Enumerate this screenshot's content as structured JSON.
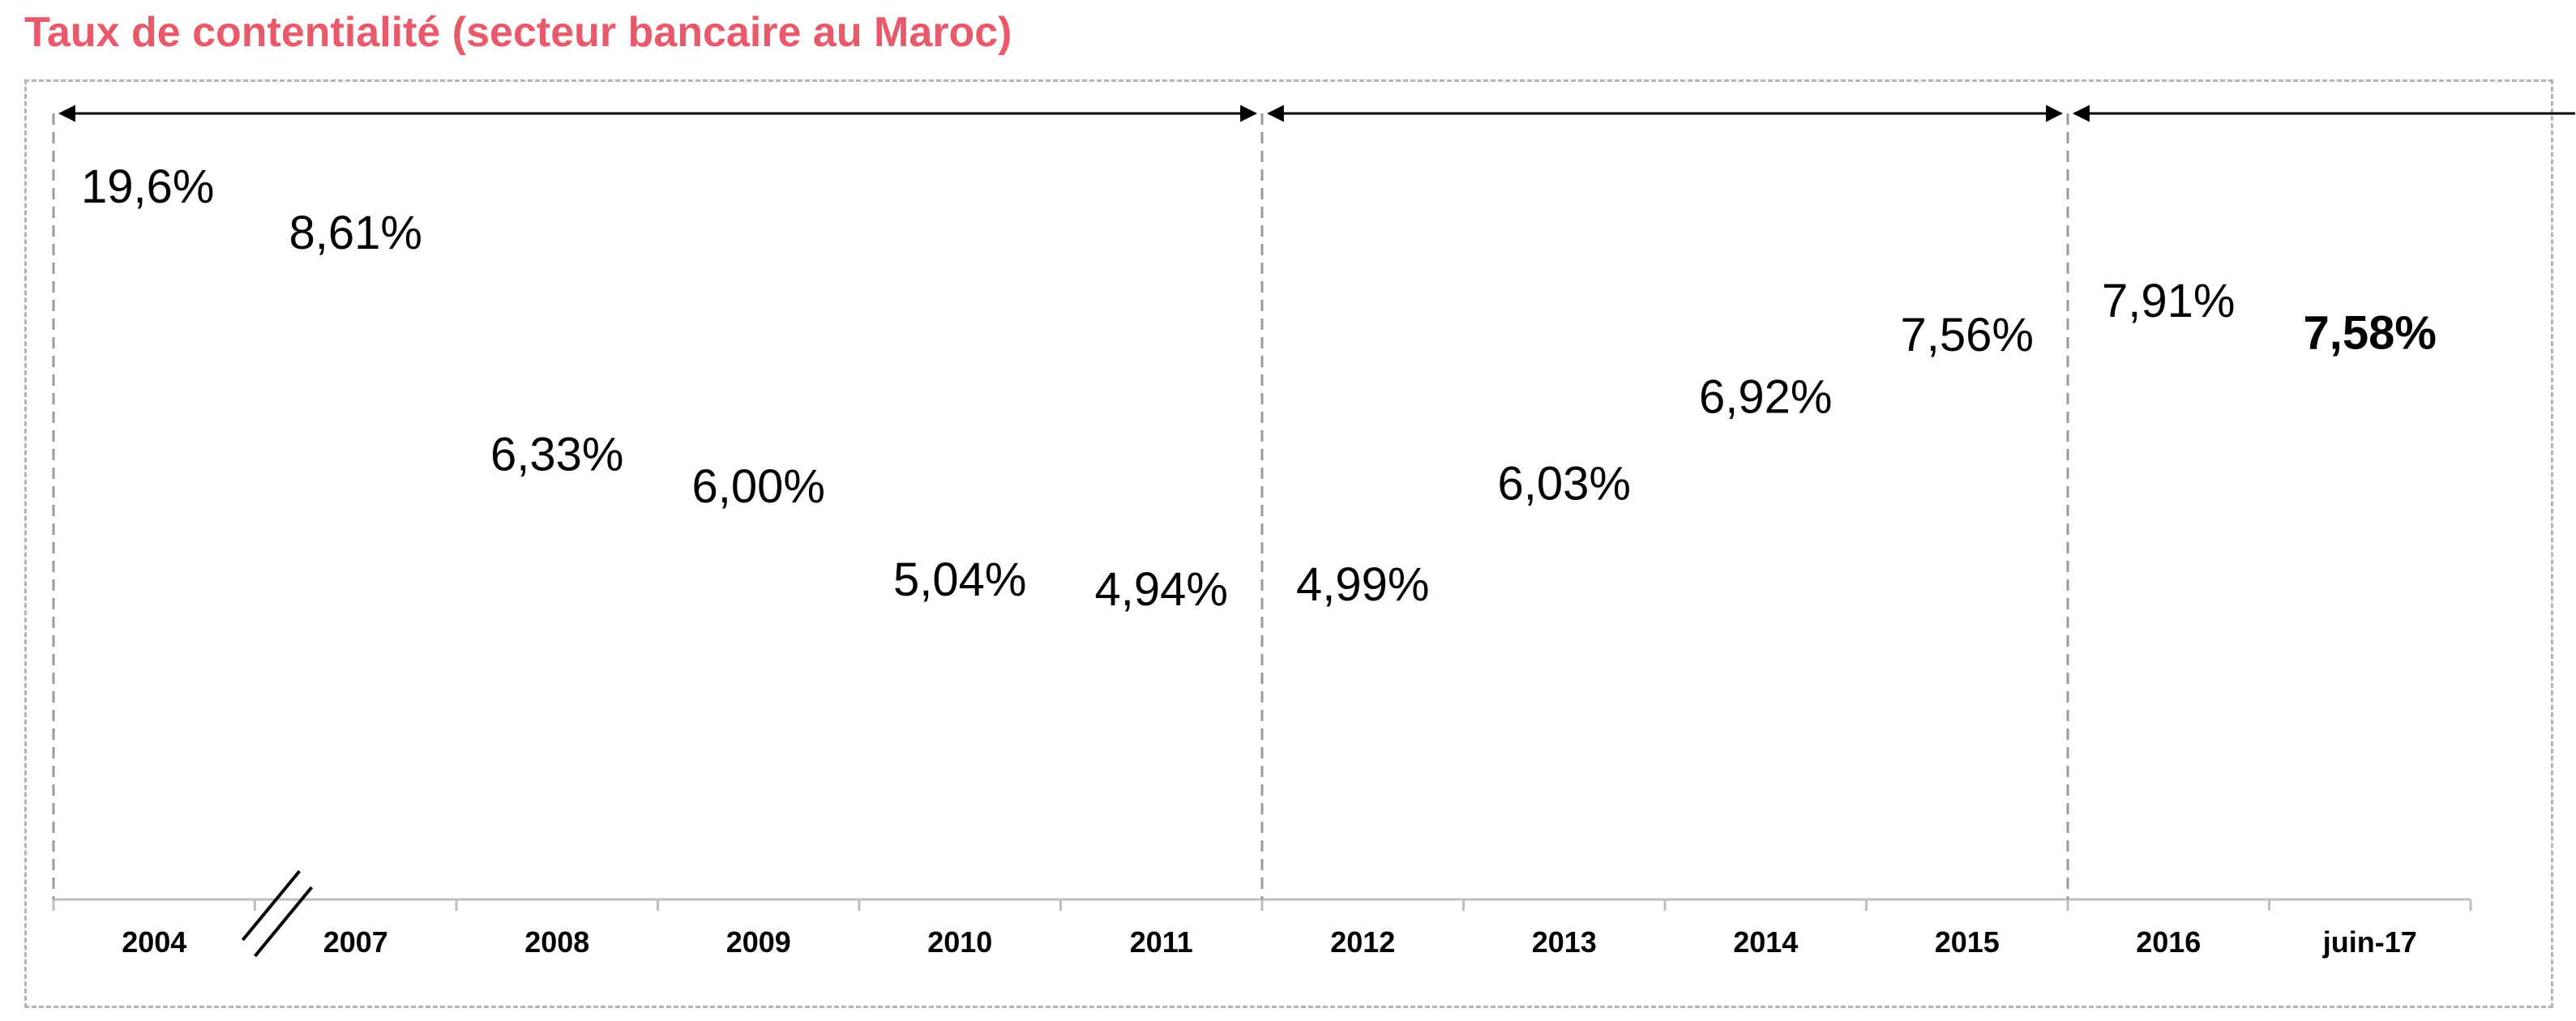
{
  "title": "Taux de contentialité (secteur bancaire au Maroc)",
  "colors": {
    "title": "#e85a6a",
    "axis": "#bfbfbf",
    "frame": "#b5b5b5",
    "text": "#000000"
  },
  "chart_data": {
    "type": "table",
    "title": "Taux de contentialité (secteur bancaire au Maroc)",
    "xlabel": "",
    "ylabel": "",
    "categories": [
      "2004",
      "2007",
      "2008",
      "2009",
      "2010",
      "2011",
      "2012",
      "2013",
      "2014",
      "2015",
      "2016",
      "juin-17"
    ],
    "values": [
      19.6,
      8.61,
      6.33,
      6.0,
      5.04,
      4.94,
      4.99,
      6.03,
      6.92,
      7.56,
      7.91,
      7.58
    ],
    "labels": [
      "19,6%",
      "8,61%",
      "6,33%",
      "6,00%",
      "5,04%",
      "4,94%",
      "4,99%",
      "6,03%",
      "6,92%",
      "7,56%",
      "7,91%",
      "7,58%"
    ],
    "highlighted": [
      "juin-17"
    ],
    "axis_break_between": [
      "2004",
      "2007"
    ],
    "period_groups": [
      {
        "from": "2004",
        "to": "2011"
      },
      {
        "from": "2012",
        "to": "2015"
      },
      {
        "from": "2016",
        "to": "juin-17",
        "open_ended": true
      }
    ],
    "grid": false,
    "legend": "none"
  }
}
